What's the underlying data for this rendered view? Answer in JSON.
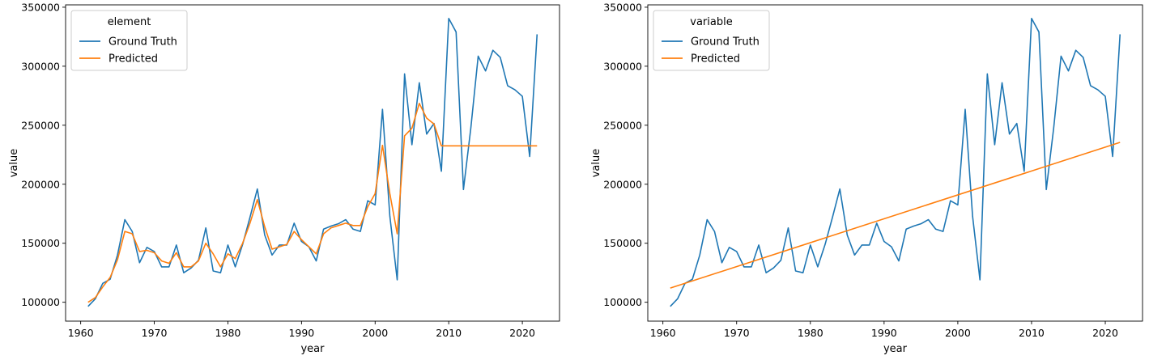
{
  "chart_data": [
    {
      "type": "line",
      "xlabel": "year",
      "ylabel": "value",
      "xlim": [
        1957.95,
        2025.05
      ],
      "ylim": [
        84000,
        352000
      ],
      "xticks": [
        1960,
        1970,
        1980,
        1990,
        2000,
        2010,
        2020
      ],
      "yticks": [
        100000,
        150000,
        200000,
        250000,
        300000,
        350000
      ],
      "legend": {
        "title": "element",
        "placement": "top-left"
      },
      "x": [
        1961,
        1962,
        1963,
        1964,
        1965,
        1966,
        1967,
        1968,
        1969,
        1970,
        1971,
        1972,
        1973,
        1974,
        1975,
        1976,
        1977,
        1978,
        1979,
        1980,
        1981,
        1982,
        1983,
        1984,
        1985,
        1986,
        1987,
        1988,
        1989,
        1990,
        1991,
        1992,
        1993,
        1994,
        1995,
        1996,
        1997,
        1998,
        1999,
        2000,
        2001,
        2002,
        2003,
        2004,
        2005,
        2006,
        2007,
        2008,
        2009,
        2010,
        2011,
        2012,
        2013,
        2014,
        2015,
        2016,
        2017,
        2018,
        2019,
        2020,
        2021,
        2022
      ],
      "series": [
        {
          "name": "Ground Truth",
          "color": "#1f77b4",
          "values": [
            96500,
            103000,
            116000,
            119500,
            140000,
            170000,
            160000,
            133500,
            146500,
            143000,
            130000,
            130000,
            148500,
            125000,
            129000,
            135500,
            163000,
            126500,
            125000,
            148500,
            130000,
            149000,
            172000,
            196000,
            157000,
            140000,
            148500,
            148500,
            167000,
            151500,
            147000,
            135000,
            162000,
            164500,
            166500,
            170000,
            162000,
            160000,
            186000,
            182500,
            263500,
            173000,
            119000,
            293500,
            233500,
            286000,
            242500,
            251500,
            211000,
            340500,
            329000,
            195500,
            247500,
            308500,
            296000,
            313500,
            307500,
            283500,
            280000,
            274500,
            223500,
            327000
          ]
        },
        {
          "name": "Predicted",
          "color": "#ff7f0e",
          "values": [
            100000,
            104000,
            113000,
            121000,
            136000,
            160000,
            158000,
            143000,
            144000,
            142000,
            135000,
            133000,
            142000,
            130000,
            130000,
            135000,
            150000,
            141000,
            130000,
            141000,
            137000,
            150000,
            167000,
            187000,
            164000,
            145000,
            147000,
            149000,
            160000,
            153000,
            147000,
            141000,
            158000,
            163000,
            165000,
            167000,
            165000,
            165000,
            181000,
            192000,
            233000,
            192000,
            158000,
            241000,
            247500,
            268500,
            256000,
            251000,
            232500,
            232500,
            232500,
            232500,
            232500,
            232500,
            232500,
            232500,
            232500,
            232500,
            232500,
            232500,
            232500,
            232500
          ]
        }
      ]
    },
    {
      "type": "line",
      "xlabel": "year",
      "ylabel": "value",
      "xlim": [
        1957.95,
        2025.05
      ],
      "ylim": [
        84000,
        352000
      ],
      "xticks": [
        1960,
        1970,
        1980,
        1990,
        2000,
        2010,
        2020
      ],
      "yticks": [
        100000,
        150000,
        200000,
        250000,
        300000,
        350000
      ],
      "legend": {
        "title": "variable",
        "placement": "top-left"
      },
      "x": [
        1961,
        1962,
        1963,
        1964,
        1965,
        1966,
        1967,
        1968,
        1969,
        1970,
        1971,
        1972,
        1973,
        1974,
        1975,
        1976,
        1977,
        1978,
        1979,
        1980,
        1981,
        1982,
        1983,
        1984,
        1985,
        1986,
        1987,
        1988,
        1989,
        1990,
        1991,
        1992,
        1993,
        1994,
        1995,
        1996,
        1997,
        1998,
        1999,
        2000,
        2001,
        2002,
        2003,
        2004,
        2005,
        2006,
        2007,
        2008,
        2009,
        2010,
        2011,
        2012,
        2013,
        2014,
        2015,
        2016,
        2017,
        2018,
        2019,
        2020,
        2021,
        2022
      ],
      "series": [
        {
          "name": "Ground Truth",
          "color": "#1f77b4",
          "values": [
            96500,
            103000,
            116000,
            119500,
            140000,
            170000,
            160000,
            133500,
            146500,
            143000,
            130000,
            130000,
            148500,
            125000,
            129000,
            135500,
            163000,
            126500,
            125000,
            148500,
            130000,
            149000,
            172000,
            196000,
            157000,
            140000,
            148500,
            148500,
            167000,
            151500,
            147000,
            135000,
            162000,
            164500,
            166500,
            170000,
            162000,
            160000,
            186000,
            182500,
            263500,
            173000,
            119000,
            293500,
            233500,
            286000,
            242500,
            251500,
            211000,
            340500,
            329000,
            195500,
            247500,
            308500,
            296000,
            313500,
            307500,
            283500,
            280000,
            274500,
            223500,
            327000
          ]
        },
        {
          "name": "Predicted",
          "color": "#ff7f0e",
          "linear": {
            "x0": 1961,
            "y0": 112000,
            "x1": 2022,
            "y1": 235500
          }
        }
      ]
    }
  ]
}
